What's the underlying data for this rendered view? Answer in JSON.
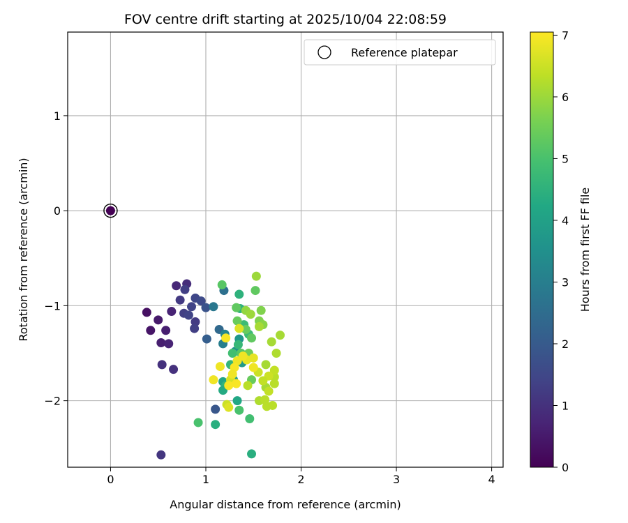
{
  "chart_data": {
    "type": "scatter",
    "title": "FOV centre drift starting at 2025/10/04 22:08:59",
    "xlabel": "Angular distance from reference (arcmin)",
    "ylabel": "Rotation from reference (arcmin)",
    "xlim": [
      -0.45,
      4.12
    ],
    "ylim": [
      -2.7,
      1.88
    ],
    "xticks": [
      0,
      1,
      2,
      3,
      4
    ],
    "yticks": [
      -2,
      -1,
      0,
      1
    ],
    "xtick_labels": [
      "0",
      "1",
      "2",
      "3",
      "4"
    ],
    "ytick_labels": [
      "−2",
      "−1",
      "0",
      "1"
    ],
    "grid": true,
    "legend": {
      "location": "top-right",
      "label": "Reference platepar"
    },
    "colorbar": {
      "label": "Hours from first FF file",
      "min": 0,
      "max": 7.05,
      "ticks": [
        0,
        1,
        2,
        3,
        4,
        5,
        6,
        7
      ],
      "tick_labels": [
        "0",
        "1",
        "2",
        "3",
        "4",
        "5",
        "6",
        "7"
      ],
      "colormap": "viridis"
    },
    "reference_point": {
      "x": 0,
      "y": 0,
      "hours": 0
    },
    "points": [
      [
        0.38,
        -1.07,
        0.3
      ],
      [
        0.42,
        -1.26,
        0.4
      ],
      [
        0.5,
        -1.15,
        0.5
      ],
      [
        0.53,
        -1.39,
        0.6
      ],
      [
        0.58,
        -1.26,
        0.6
      ],
      [
        0.61,
        -1.4,
        0.7
      ],
      [
        0.64,
        -1.06,
        0.7
      ],
      [
        0.69,
        -0.79,
        0.8
      ],
      [
        0.8,
        -0.77,
        0.9
      ],
      [
        0.54,
        -1.62,
        1.0
      ],
      [
        0.66,
        -1.67,
        1.0
      ],
      [
        0.53,
        -2.57,
        1.1
      ],
      [
        0.73,
        -0.94,
        1.2
      ],
      [
        0.78,
        -0.83,
        1.3
      ],
      [
        0.77,
        -1.08,
        1.3
      ],
      [
        0.82,
        -1.1,
        1.4
      ],
      [
        0.85,
        -1.01,
        1.4
      ],
      [
        0.89,
        -0.92,
        1.5
      ],
      [
        0.95,
        -0.95,
        1.6
      ],
      [
        0.89,
        -1.17,
        1.2
      ],
      [
        0.88,
        -1.24,
        1.3
      ],
      [
        1.0,
        -1.02,
        1.8
      ],
      [
        1.1,
        -2.09,
        1.9
      ],
      [
        1.01,
        -1.35,
        2.1
      ],
      [
        1.14,
        -1.25,
        2.4
      ],
      [
        1.19,
        -0.84,
        2.6
      ],
      [
        1.08,
        -1.01,
        2.8
      ],
      [
        1.18,
        -1.4,
        3.0
      ],
      [
        1.2,
        -1.3,
        3.2
      ],
      [
        1.31,
        -1.48,
        3.5
      ],
      [
        1.35,
        -1.35,
        3.7
      ],
      [
        1.38,
        -1.6,
        3.8
      ],
      [
        1.29,
        -1.78,
        4.0
      ],
      [
        1.18,
        -1.8,
        4.1
      ],
      [
        1.33,
        -2.0,
        4.2
      ],
      [
        1.1,
        -2.25,
        4.4
      ],
      [
        1.48,
        -2.56,
        4.4
      ],
      [
        1.35,
        -0.88,
        4.5
      ],
      [
        1.36,
        -1.03,
        4.5
      ],
      [
        1.26,
        -1.62,
        4.6
      ],
      [
        1.21,
        -1.84,
        4.6
      ],
      [
        1.34,
        -1.41,
        4.7
      ],
      [
        1.45,
        -1.3,
        4.8
      ],
      [
        1.4,
        -1.2,
        4.8
      ],
      [
        1.28,
        -1.5,
        4.9
      ],
      [
        1.46,
        -2.19,
        4.9
      ],
      [
        1.35,
        -2.1,
        5.0
      ],
      [
        0.92,
        -2.23,
        5.0
      ],
      [
        1.18,
        -1.89,
        4.3
      ],
      [
        1.17,
        -0.78,
        5.2
      ],
      [
        1.52,
        -0.84,
        5.3
      ],
      [
        1.32,
        -1.02,
        5.3
      ],
      [
        1.33,
        -1.16,
        5.4
      ],
      [
        1.42,
        -1.25,
        5.4
      ],
      [
        1.37,
        -1.5,
        5.2
      ],
      [
        1.45,
        -1.5,
        5.5
      ],
      [
        1.48,
        -1.34,
        5.3
      ],
      [
        1.48,
        -1.78,
        5.4
      ],
      [
        1.58,
        -1.05,
        5.7
      ],
      [
        1.56,
        -1.16,
        5.7
      ],
      [
        1.6,
        -1.2,
        5.8
      ],
      [
        1.42,
        -1.05,
        5.9
      ],
      [
        1.47,
        -1.09,
        6.0
      ],
      [
        1.53,
        -0.69,
        6.0
      ],
      [
        1.56,
        -1.22,
        6.1
      ],
      [
        1.63,
        -1.62,
        6.1
      ],
      [
        1.63,
        -1.86,
        6.1
      ],
      [
        1.56,
        -2.0,
        6.2
      ],
      [
        1.64,
        -2.06,
        6.3
      ],
      [
        1.7,
        -2.05,
        6.3
      ],
      [
        1.66,
        -1.9,
        6.4
      ],
      [
        1.69,
        -1.38,
        6.1
      ],
      [
        1.74,
        -1.5,
        6.2
      ],
      [
        1.78,
        -1.31,
        6.1
      ],
      [
        1.72,
        -1.75,
        6.3
      ],
      [
        1.72,
        -1.82,
        6.3
      ],
      [
        1.72,
        -1.68,
        6.4
      ],
      [
        1.66,
        -1.74,
        6.5
      ],
      [
        1.6,
        -1.79,
        6.4
      ],
      [
        1.55,
        -1.7,
        6.5
      ],
      [
        1.62,
        -1.99,
        6.3
      ],
      [
        1.44,
        -1.84,
        6.3
      ],
      [
        1.22,
        -2.04,
        6.5
      ],
      [
        1.26,
        -1.78,
        6.6
      ],
      [
        1.24,
        -2.07,
        6.7
      ],
      [
        1.35,
        -1.24,
        6.7
      ],
      [
        1.43,
        -1.57,
        6.8
      ],
      [
        1.5,
        -1.55,
        6.8
      ],
      [
        1.5,
        -1.65,
        6.9
      ],
      [
        1.39,
        -1.53,
        6.9
      ],
      [
        1.33,
        -1.58,
        6.9
      ],
      [
        1.3,
        -1.65,
        7.0
      ],
      [
        1.28,
        -1.72,
        6.9
      ],
      [
        1.32,
        -1.82,
        7.0
      ],
      [
        1.24,
        -1.84,
        7.0
      ],
      [
        1.15,
        -1.64,
        6.9
      ],
      [
        1.08,
        -1.78,
        6.9
      ],
      [
        1.21,
        -1.34,
        7.0
      ]
    ]
  }
}
